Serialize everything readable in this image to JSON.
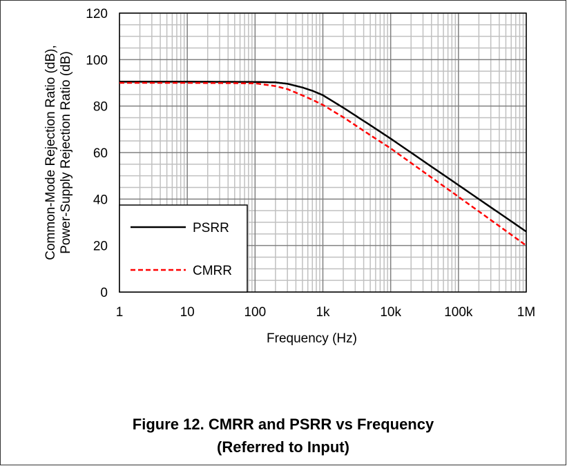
{
  "chart_data": {
    "type": "line",
    "x_scale": "log",
    "xlim": [
      1,
      1000000
    ],
    "ylim": [
      0,
      120
    ],
    "grid": true,
    "xlabel": "Frequency (Hz)",
    "ylabel_lines": [
      "Common-Mode Rejection Ratio (dB),",
      "Power-Supply Rejection Ratio (dB)"
    ],
    "x_ticks": [
      1,
      10,
      100,
      1000,
      10000,
      100000,
      1000000
    ],
    "x_tick_labels": [
      "1",
      "10",
      "100",
      "1k",
      "10k",
      "100k",
      "1M"
    ],
    "y_ticks": [
      0,
      20,
      40,
      60,
      80,
      100,
      120
    ],
    "y_tick_labels": [
      "0",
      "20",
      "40",
      "60",
      "80",
      "100",
      "120"
    ],
    "legend_position": "bottom-left",
    "series": [
      {
        "name": "PSRR",
        "color": "#000000",
        "line_style": "solid",
        "x": [
          1,
          10,
          100,
          200,
          300,
          500,
          700,
          1000,
          2000,
          5000,
          10000,
          100000,
          1000000
        ],
        "y": [
          90.5,
          90.5,
          90.4,
          90.2,
          89.6,
          88,
          86.6,
          84.7,
          79.3,
          71.8,
          66,
          46,
          26
        ]
      },
      {
        "name": "CMRR",
        "color": "#ff0000",
        "line_style": "dashed",
        "x": [
          1,
          10,
          100,
          200,
          300,
          500,
          700,
          1000,
          2000,
          5000,
          10000,
          100000,
          1000000
        ],
        "y": [
          90,
          90,
          89.8,
          88.6,
          87.3,
          84.6,
          82.7,
          80.5,
          75.2,
          67.5,
          61.8,
          41,
          20
        ]
      }
    ]
  },
  "caption": {
    "line1": "Figure 12.  CMRR and PSRR vs Frequency",
    "line2": "(Referred to Input)"
  }
}
